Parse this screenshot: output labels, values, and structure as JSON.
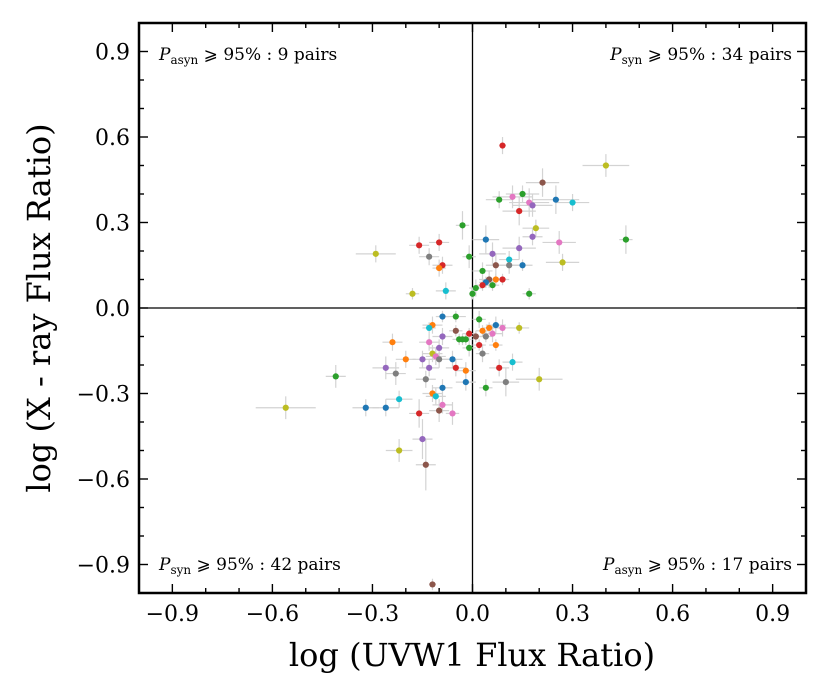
{
  "chart_data": {
    "type": "scatter",
    "title": "",
    "xlabel": "log (UVW1 Flux Ratio)",
    "ylabel": "log (X - ray Flux Ratio)",
    "xlim": [
      -1.0,
      1.0
    ],
    "ylim": [
      -1.0,
      1.0
    ],
    "xticks": [
      -0.9,
      -0.6,
      -0.3,
      0.0,
      0.3,
      0.6,
      0.9
    ],
    "yticks": [
      -0.9,
      -0.6,
      -0.3,
      0.0,
      0.3,
      0.6,
      0.9
    ],
    "xtick_labels": [
      "−0.9",
      "−0.6",
      "−0.3",
      "0.0",
      "0.3",
      "0.6",
      "0.9"
    ],
    "ytick_labels": [
      "−0.9",
      "−0.6",
      "−0.3",
      "0.0",
      "0.3",
      "0.6",
      "0.9"
    ],
    "grid": false,
    "reference_lines": {
      "x": 0.0,
      "y": 0.0
    },
    "error_bar_color": "#d3d3d3",
    "palette": [
      "#1f77b4",
      "#ff7f0e",
      "#2ca02c",
      "#d62728",
      "#9467bd",
      "#8c564b",
      "#e377c2",
      "#7f7f7f",
      "#bcbd22",
      "#17becf"
    ],
    "annotations": [
      {
        "position": "top-left",
        "symbol": "P",
        "subscript": "asyn",
        "text": " ⩾ 95% : 9 pairs"
      },
      {
        "position": "top-right",
        "symbol": "P",
        "subscript": "syn",
        "text": " ⩾ 95% : 34 pairs"
      },
      {
        "position": "bottom-left",
        "symbol": "P",
        "subscript": "syn",
        "text": " ⩾ 95% : 42 pairs"
      },
      {
        "position": "bottom-right",
        "symbol": "P",
        "subscript": "asyn",
        "text": " ⩾ 95% : 17 pairs"
      }
    ],
    "points": [
      {
        "x": 0.09,
        "y": 0.57,
        "c": 3,
        "ex": 0.01,
        "ey": 0.03
      },
      {
        "x": 0.4,
        "y": 0.5,
        "c": 8,
        "ex": 0.07,
        "ey": 0.04
      },
      {
        "x": 0.21,
        "y": 0.44,
        "c": 5,
        "ex": 0.05,
        "ey": 0.05
      },
      {
        "x": 0.15,
        "y": 0.4,
        "c": 2,
        "ex": 0.05,
        "ey": 0.03
      },
      {
        "x": 0.25,
        "y": 0.38,
        "c": 0,
        "ex": 0.07,
        "ey": 0.05
      },
      {
        "x": 0.3,
        "y": 0.37,
        "c": 9,
        "ex": 0.05,
        "ey": 0.03
      },
      {
        "x": 0.12,
        "y": 0.39,
        "c": 6,
        "ex": 0.06,
        "ey": 0.04
      },
      {
        "x": 0.08,
        "y": 0.38,
        "c": 2,
        "ex": 0.04,
        "ey": 0.03
      },
      {
        "x": 0.17,
        "y": 0.37,
        "c": 6,
        "ex": 0.06,
        "ey": 0.05
      },
      {
        "x": 0.18,
        "y": 0.36,
        "c": 4,
        "ex": 0.06,
        "ey": 0.04
      },
      {
        "x": 0.14,
        "y": 0.34,
        "c": 3,
        "ex": 0.05,
        "ey": 0.05
      },
      {
        "x": 0.19,
        "y": 0.28,
        "c": 8,
        "ex": 0.04,
        "ey": 0.03
      },
      {
        "x": 0.18,
        "y": 0.25,
        "c": 4,
        "ex": 0.03,
        "ey": 0.03
      },
      {
        "x": 0.04,
        "y": 0.24,
        "c": 0,
        "ex": 0.04,
        "ey": 0.05
      },
      {
        "x": -0.1,
        "y": 0.23,
        "c": 3,
        "ex": 0.03,
        "ey": 0.03
      },
      {
        "x": -0.16,
        "y": 0.22,
        "c": 3,
        "ex": 0.03,
        "ey": 0.03
      },
      {
        "x": 0.26,
        "y": 0.23,
        "c": 6,
        "ex": 0.05,
        "ey": 0.04
      },
      {
        "x": 0.46,
        "y": 0.24,
        "c": 2,
        "ex": 0.02,
        "ey": 0.05
      },
      {
        "x": 0.14,
        "y": 0.21,
        "c": 4,
        "ex": 0.05,
        "ey": 0.04
      },
      {
        "x": -0.03,
        "y": 0.29,
        "c": 2,
        "ex": 0.02,
        "ey": 0.05
      },
      {
        "x": -0.29,
        "y": 0.19,
        "c": 8,
        "ex": 0.06,
        "ey": 0.03
      },
      {
        "x": -0.13,
        "y": 0.18,
        "c": 7,
        "ex": 0.03,
        "ey": 0.03
      },
      {
        "x": 0.06,
        "y": 0.19,
        "c": 4,
        "ex": 0.04,
        "ey": 0.04
      },
      {
        "x": 0.11,
        "y": 0.17,
        "c": 9,
        "ex": 0.03,
        "ey": 0.03
      },
      {
        "x": 0.27,
        "y": 0.16,
        "c": 8,
        "ex": 0.05,
        "ey": 0.03
      },
      {
        "x": 0.15,
        "y": 0.15,
        "c": 0,
        "ex": 0.03,
        "ey": 0.02
      },
      {
        "x": -0.09,
        "y": 0.15,
        "c": 3,
        "ex": 0.03,
        "ey": 0.03
      },
      {
        "x": -0.1,
        "y": 0.14,
        "c": 1,
        "ex": 0.02,
        "ey": 0.03
      },
      {
        "x": 0.07,
        "y": 0.15,
        "c": 5,
        "ex": 0.03,
        "ey": 0.04
      },
      {
        "x": 0.11,
        "y": 0.15,
        "c": 7,
        "ex": 0.04,
        "ey": 0.03
      },
      {
        "x": 0.03,
        "y": 0.13,
        "c": 2,
        "ex": 0.03,
        "ey": 0.03
      },
      {
        "x": -0.01,
        "y": 0.18,
        "c": 2,
        "ex": 0.02,
        "ey": 0.04
      },
      {
        "x": 0.05,
        "y": 0.1,
        "c": 5,
        "ex": 0.03,
        "ey": 0.03
      },
      {
        "x": 0.07,
        "y": 0.1,
        "c": 1,
        "ex": 0.02,
        "ey": 0.02
      },
      {
        "x": 0.09,
        "y": 0.1,
        "c": 3,
        "ex": 0.02,
        "ey": 0.02
      },
      {
        "x": 0.04,
        "y": 0.09,
        "c": 0,
        "ex": 0.02,
        "ey": 0.02
      },
      {
        "x": 0.03,
        "y": 0.08,
        "c": 3,
        "ex": 0.02,
        "ey": 0.02
      },
      {
        "x": 0.06,
        "y": 0.08,
        "c": 2,
        "ex": 0.02,
        "ey": 0.02
      },
      {
        "x": 0.01,
        "y": 0.07,
        "c": 2,
        "ex": 0.02,
        "ey": 0.03
      },
      {
        "x": 0.0,
        "y": 0.05,
        "c": 2,
        "ex": 0.01,
        "ey": 0.02
      },
      {
        "x": -0.08,
        "y": 0.06,
        "c": 9,
        "ex": 0.03,
        "ey": 0.03
      },
      {
        "x": -0.18,
        "y": 0.05,
        "c": 8,
        "ex": 0.02,
        "ey": 0.02
      },
      {
        "x": 0.17,
        "y": 0.05,
        "c": 2,
        "ex": 0.02,
        "ey": 0.02
      },
      {
        "x": -0.09,
        "y": -0.03,
        "c": 0,
        "ex": 0.02,
        "ey": 0.02
      },
      {
        "x": -0.05,
        "y": -0.03,
        "c": 2,
        "ex": 0.03,
        "ey": 0.02
      },
      {
        "x": 0.02,
        "y": -0.04,
        "c": 2,
        "ex": 0.02,
        "ey": 0.03
      },
      {
        "x": 0.14,
        "y": -0.07,
        "c": 8,
        "ex": 0.03,
        "ey": 0.02
      },
      {
        "x": -0.12,
        "y": -0.06,
        "c": 1,
        "ex": 0.03,
        "ey": 0.03
      },
      {
        "x": -0.13,
        "y": -0.07,
        "c": 9,
        "ex": 0.02,
        "ey": 0.02
      },
      {
        "x": 0.07,
        "y": -0.06,
        "c": 0,
        "ex": 0.03,
        "ey": 0.03
      },
      {
        "x": 0.09,
        "y": -0.07,
        "c": 6,
        "ex": 0.03,
        "ey": 0.03
      },
      {
        "x": 0.05,
        "y": -0.07,
        "c": 1,
        "ex": 0.02,
        "ey": 0.02
      },
      {
        "x": 0.03,
        "y": -0.08,
        "c": 1,
        "ex": 0.02,
        "ey": 0.02
      },
      {
        "x": -0.05,
        "y": -0.08,
        "c": 5,
        "ex": 0.02,
        "ey": 0.02
      },
      {
        "x": 0.06,
        "y": -0.09,
        "c": 6,
        "ex": 0.03,
        "ey": 0.03
      },
      {
        "x": -0.01,
        "y": -0.09,
        "c": 3,
        "ex": 0.02,
        "ey": 0.02
      },
      {
        "x": 0.04,
        "y": -0.1,
        "c": 7,
        "ex": 0.02,
        "ey": 0.02
      },
      {
        "x": -0.09,
        "y": -0.1,
        "c": 4,
        "ex": 0.03,
        "ey": 0.03
      },
      {
        "x": -0.04,
        "y": -0.11,
        "c": 2,
        "ex": 0.02,
        "ey": 0.02
      },
      {
        "x": -0.03,
        "y": -0.11,
        "c": 2,
        "ex": 0.02,
        "ey": 0.02
      },
      {
        "x": -0.02,
        "y": -0.11,
        "c": 2,
        "ex": 0.02,
        "ey": 0.02
      },
      {
        "x": 0.01,
        "y": -0.1,
        "c": 5,
        "ex": 0.02,
        "ey": 0.02
      },
      {
        "x": -0.13,
        "y": -0.12,
        "c": 6,
        "ex": 0.03,
        "ey": 0.03
      },
      {
        "x": 0.02,
        "y": -0.13,
        "c": 3,
        "ex": 0.02,
        "ey": 0.02
      },
      {
        "x": 0.07,
        "y": -0.13,
        "c": 1,
        "ex": 0.02,
        "ey": 0.02
      },
      {
        "x": -0.24,
        "y": -0.12,
        "c": 1,
        "ex": 0.03,
        "ey": 0.03
      },
      {
        "x": -0.01,
        "y": -0.14,
        "c": 2,
        "ex": 0.02,
        "ey": 0.03
      },
      {
        "x": -0.1,
        "y": -0.14,
        "c": 4,
        "ex": 0.03,
        "ey": 0.03
      },
      {
        "x": -0.12,
        "y": -0.16,
        "c": 8,
        "ex": 0.03,
        "ey": 0.03
      },
      {
        "x": -0.11,
        "y": -0.17,
        "c": 6,
        "ex": 0.03,
        "ey": 0.03
      },
      {
        "x": 0.03,
        "y": -0.16,
        "c": 7,
        "ex": 0.02,
        "ey": 0.03
      },
      {
        "x": -0.2,
        "y": -0.18,
        "c": 1,
        "ex": 0.03,
        "ey": 0.03
      },
      {
        "x": -0.1,
        "y": -0.18,
        "c": 7,
        "ex": 0.03,
        "ey": 0.03
      },
      {
        "x": -0.15,
        "y": -0.18,
        "c": 4,
        "ex": 0.03,
        "ey": 0.03
      },
      {
        "x": -0.06,
        "y": -0.18,
        "c": 0,
        "ex": 0.03,
        "ey": 0.03
      },
      {
        "x": 0.12,
        "y": -0.19,
        "c": 9,
        "ex": 0.03,
        "ey": 0.03
      },
      {
        "x": -0.26,
        "y": -0.21,
        "c": 4,
        "ex": 0.04,
        "ey": 0.04
      },
      {
        "x": -0.13,
        "y": -0.21,
        "c": 4,
        "ex": 0.03,
        "ey": 0.03
      },
      {
        "x": -0.05,
        "y": -0.21,
        "c": 3,
        "ex": 0.03,
        "ey": 0.03
      },
      {
        "x": 0.08,
        "y": -0.21,
        "c": 3,
        "ex": 0.03,
        "ey": 0.03
      },
      {
        "x": -0.02,
        "y": -0.22,
        "c": 1,
        "ex": 0.03,
        "ey": 0.03
      },
      {
        "x": -0.41,
        "y": -0.24,
        "c": 2,
        "ex": 0.03,
        "ey": 0.04
      },
      {
        "x": -0.23,
        "y": -0.23,
        "c": 7,
        "ex": 0.03,
        "ey": 0.04
      },
      {
        "x": -0.14,
        "y": -0.25,
        "c": 7,
        "ex": 0.03,
        "ey": 0.03
      },
      {
        "x": 0.2,
        "y": -0.25,
        "c": 8,
        "ex": 0.07,
        "ey": 0.04
      },
      {
        "x": -0.02,
        "y": -0.26,
        "c": 0,
        "ex": 0.03,
        "ey": 0.03
      },
      {
        "x": 0.1,
        "y": -0.26,
        "c": 7,
        "ex": 0.04,
        "ey": 0.05
      },
      {
        "x": 0.04,
        "y": -0.28,
        "c": 2,
        "ex": 0.02,
        "ey": 0.03
      },
      {
        "x": -0.09,
        "y": -0.28,
        "c": 0,
        "ex": 0.03,
        "ey": 0.03
      },
      {
        "x": -0.12,
        "y": -0.3,
        "c": 1,
        "ex": 0.03,
        "ey": 0.03
      },
      {
        "x": -0.11,
        "y": -0.31,
        "c": 9,
        "ex": 0.03,
        "ey": 0.03
      },
      {
        "x": -0.22,
        "y": -0.32,
        "c": 9,
        "ex": 0.04,
        "ey": 0.03
      },
      {
        "x": -0.09,
        "y": -0.34,
        "c": 6,
        "ex": 0.03,
        "ey": 0.03
      },
      {
        "x": -0.56,
        "y": -0.35,
        "c": 8,
        "ex": 0.09,
        "ey": 0.04
      },
      {
        "x": -0.32,
        "y": -0.35,
        "c": 0,
        "ex": 0.04,
        "ey": 0.03
      },
      {
        "x": -0.26,
        "y": -0.35,
        "c": 0,
        "ex": 0.04,
        "ey": 0.03
      },
      {
        "x": -0.1,
        "y": -0.36,
        "c": 5,
        "ex": 0.03,
        "ey": 0.04
      },
      {
        "x": -0.16,
        "y": -0.37,
        "c": 3,
        "ex": 0.03,
        "ey": 0.05
      },
      {
        "x": -0.06,
        "y": -0.37,
        "c": 6,
        "ex": 0.02,
        "ey": 0.04
      },
      {
        "x": -0.15,
        "y": -0.46,
        "c": 4,
        "ex": 0.03,
        "ey": 0.07
      },
      {
        "x": -0.22,
        "y": -0.5,
        "c": 8,
        "ex": 0.04,
        "ey": 0.04
      },
      {
        "x": -0.14,
        "y": -0.55,
        "c": 5,
        "ex": 0.03,
        "ey": 0.09
      },
      {
        "x": -0.12,
        "y": -0.97,
        "c": 5,
        "ex": 0.01,
        "ey": 0.02
      }
    ]
  }
}
